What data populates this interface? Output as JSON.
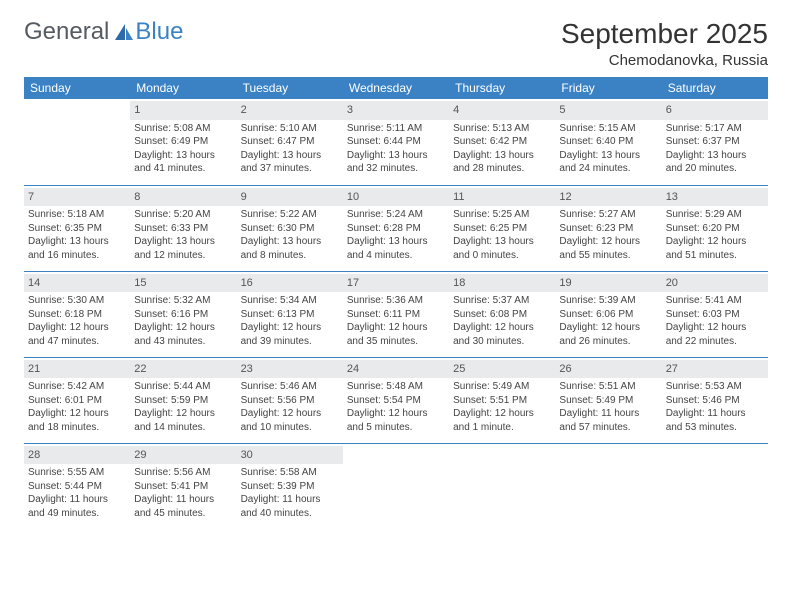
{
  "brand": {
    "part1": "General",
    "part2": "Blue"
  },
  "colors": {
    "accent": "#3b82c4",
    "header_text": "#ffffff",
    "daynum_bg": "#e8eaec",
    "body_text": "#444444",
    "page_bg": "#ffffff"
  },
  "title": "September 2025",
  "location": "Chemodanovka, Russia",
  "day_headers": [
    "Sunday",
    "Monday",
    "Tuesday",
    "Wednesday",
    "Thursday",
    "Friday",
    "Saturday"
  ],
  "weeks": [
    [
      null,
      {
        "n": "1",
        "sr": "Sunrise: 5:08 AM",
        "ss": "Sunset: 6:49 PM",
        "dl": "Daylight: 13 hours and 41 minutes."
      },
      {
        "n": "2",
        "sr": "Sunrise: 5:10 AM",
        "ss": "Sunset: 6:47 PM",
        "dl": "Daylight: 13 hours and 37 minutes."
      },
      {
        "n": "3",
        "sr": "Sunrise: 5:11 AM",
        "ss": "Sunset: 6:44 PM",
        "dl": "Daylight: 13 hours and 32 minutes."
      },
      {
        "n": "4",
        "sr": "Sunrise: 5:13 AM",
        "ss": "Sunset: 6:42 PM",
        "dl": "Daylight: 13 hours and 28 minutes."
      },
      {
        "n": "5",
        "sr": "Sunrise: 5:15 AM",
        "ss": "Sunset: 6:40 PM",
        "dl": "Daylight: 13 hours and 24 minutes."
      },
      {
        "n": "6",
        "sr": "Sunrise: 5:17 AM",
        "ss": "Sunset: 6:37 PM",
        "dl": "Daylight: 13 hours and 20 minutes."
      }
    ],
    [
      {
        "n": "7",
        "sr": "Sunrise: 5:18 AM",
        "ss": "Sunset: 6:35 PM",
        "dl": "Daylight: 13 hours and 16 minutes."
      },
      {
        "n": "8",
        "sr": "Sunrise: 5:20 AM",
        "ss": "Sunset: 6:33 PM",
        "dl": "Daylight: 13 hours and 12 minutes."
      },
      {
        "n": "9",
        "sr": "Sunrise: 5:22 AM",
        "ss": "Sunset: 6:30 PM",
        "dl": "Daylight: 13 hours and 8 minutes."
      },
      {
        "n": "10",
        "sr": "Sunrise: 5:24 AM",
        "ss": "Sunset: 6:28 PM",
        "dl": "Daylight: 13 hours and 4 minutes."
      },
      {
        "n": "11",
        "sr": "Sunrise: 5:25 AM",
        "ss": "Sunset: 6:25 PM",
        "dl": "Daylight: 13 hours and 0 minutes."
      },
      {
        "n": "12",
        "sr": "Sunrise: 5:27 AM",
        "ss": "Sunset: 6:23 PM",
        "dl": "Daylight: 12 hours and 55 minutes."
      },
      {
        "n": "13",
        "sr": "Sunrise: 5:29 AM",
        "ss": "Sunset: 6:20 PM",
        "dl": "Daylight: 12 hours and 51 minutes."
      }
    ],
    [
      {
        "n": "14",
        "sr": "Sunrise: 5:30 AM",
        "ss": "Sunset: 6:18 PM",
        "dl": "Daylight: 12 hours and 47 minutes."
      },
      {
        "n": "15",
        "sr": "Sunrise: 5:32 AM",
        "ss": "Sunset: 6:16 PM",
        "dl": "Daylight: 12 hours and 43 minutes."
      },
      {
        "n": "16",
        "sr": "Sunrise: 5:34 AM",
        "ss": "Sunset: 6:13 PM",
        "dl": "Daylight: 12 hours and 39 minutes."
      },
      {
        "n": "17",
        "sr": "Sunrise: 5:36 AM",
        "ss": "Sunset: 6:11 PM",
        "dl": "Daylight: 12 hours and 35 minutes."
      },
      {
        "n": "18",
        "sr": "Sunrise: 5:37 AM",
        "ss": "Sunset: 6:08 PM",
        "dl": "Daylight: 12 hours and 30 minutes."
      },
      {
        "n": "19",
        "sr": "Sunrise: 5:39 AM",
        "ss": "Sunset: 6:06 PM",
        "dl": "Daylight: 12 hours and 26 minutes."
      },
      {
        "n": "20",
        "sr": "Sunrise: 5:41 AM",
        "ss": "Sunset: 6:03 PM",
        "dl": "Daylight: 12 hours and 22 minutes."
      }
    ],
    [
      {
        "n": "21",
        "sr": "Sunrise: 5:42 AM",
        "ss": "Sunset: 6:01 PM",
        "dl": "Daylight: 12 hours and 18 minutes."
      },
      {
        "n": "22",
        "sr": "Sunrise: 5:44 AM",
        "ss": "Sunset: 5:59 PM",
        "dl": "Daylight: 12 hours and 14 minutes."
      },
      {
        "n": "23",
        "sr": "Sunrise: 5:46 AM",
        "ss": "Sunset: 5:56 PM",
        "dl": "Daylight: 12 hours and 10 minutes."
      },
      {
        "n": "24",
        "sr": "Sunrise: 5:48 AM",
        "ss": "Sunset: 5:54 PM",
        "dl": "Daylight: 12 hours and 5 minutes."
      },
      {
        "n": "25",
        "sr": "Sunrise: 5:49 AM",
        "ss": "Sunset: 5:51 PM",
        "dl": "Daylight: 12 hours and 1 minute."
      },
      {
        "n": "26",
        "sr": "Sunrise: 5:51 AM",
        "ss": "Sunset: 5:49 PM",
        "dl": "Daylight: 11 hours and 57 minutes."
      },
      {
        "n": "27",
        "sr": "Sunrise: 5:53 AM",
        "ss": "Sunset: 5:46 PM",
        "dl": "Daylight: 11 hours and 53 minutes."
      }
    ],
    [
      {
        "n": "28",
        "sr": "Sunrise: 5:55 AM",
        "ss": "Sunset: 5:44 PM",
        "dl": "Daylight: 11 hours and 49 minutes."
      },
      {
        "n": "29",
        "sr": "Sunrise: 5:56 AM",
        "ss": "Sunset: 5:41 PM",
        "dl": "Daylight: 11 hours and 45 minutes."
      },
      {
        "n": "30",
        "sr": "Sunrise: 5:58 AM",
        "ss": "Sunset: 5:39 PM",
        "dl": "Daylight: 11 hours and 40 minutes."
      },
      null,
      null,
      null,
      null
    ]
  ]
}
